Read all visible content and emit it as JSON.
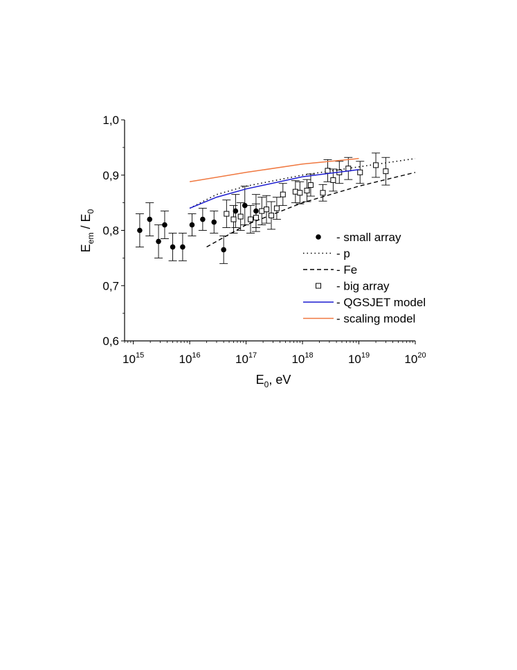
{
  "chart_data": {
    "type": "scatter",
    "xscale": "log",
    "xlim": [
      700000000000000.0,
      1e+20
    ],
    "ylim": [
      0.6,
      1.0
    ],
    "xlabel": {
      "main": "E",
      "sub": "0",
      "unit": ",  eV"
    },
    "ylabel": {
      "a": "E",
      "a_sub": "em",
      "sep": " / ",
      "b": "E",
      "b_sub": "0"
    },
    "x_tick_labels": [
      {
        "x": 1000000000000000.0,
        "base": "10",
        "exp": "15"
      },
      {
        "x": 1e+16,
        "base": "10",
        "exp": "16"
      },
      {
        "x": 1e+17,
        "base": "10",
        "exp": "17"
      },
      {
        "x": 1e+18,
        "base": "10",
        "exp": "18"
      },
      {
        "x": 1e+19,
        "base": "10",
        "exp": "19"
      },
      {
        "x": 1e+20,
        "base": "10",
        "exp": "20"
      }
    ],
    "y_ticks": [
      0.6,
      0.7,
      0.8,
      0.9,
      1.0
    ],
    "y_tick_labels": [
      "0,6",
      "0,7",
      "0,8",
      "0,9",
      "1,0"
    ],
    "grid": false,
    "legend_position": "lower-right",
    "series": [
      {
        "name": "small array",
        "kind": "points",
        "marker": "filled-circle",
        "color": "#000000",
        "points": [
          {
            "x": 1300000000000000.0,
            "y": 0.8,
            "err": 0.03
          },
          {
            "x": 1950000000000000.0,
            "y": 0.82,
            "err": 0.03
          },
          {
            "x": 2800000000000000.0,
            "y": 0.78,
            "err": 0.03
          },
          {
            "x": 3600000000000000.0,
            "y": 0.81,
            "err": 0.025
          },
          {
            "x": 5000000000000000.0,
            "y": 0.77,
            "err": 0.025
          },
          {
            "x": 7500000000000000.0,
            "y": 0.77,
            "err": 0.025
          },
          {
            "x": 1.1e+16,
            "y": 0.81,
            "err": 0.02
          },
          {
            "x": 1.7e+16,
            "y": 0.82,
            "err": 0.02
          },
          {
            "x": 2.7e+16,
            "y": 0.815,
            "err": 0.02
          },
          {
            "x": 4e+16,
            "y": 0.765,
            "err": 0.025
          },
          {
            "x": 6.5e+16,
            "y": 0.835,
            "err": 0.03
          },
          {
            "x": 9.5e+16,
            "y": 0.845,
            "err": 0.035
          },
          {
            "x": 1.5e+17,
            "y": 0.835,
            "err": 0.03
          }
        ]
      },
      {
        "name": "p",
        "kind": "line",
        "style": "dotted",
        "color": "#000000",
        "points": [
          {
            "x": 1e+16,
            "y": 0.84
          },
          {
            "x": 3e+16,
            "y": 0.865
          },
          {
            "x": 1e+17,
            "y": 0.88
          },
          {
            "x": 1e+18,
            "y": 0.9
          },
          {
            "x": 1e+19,
            "y": 0.915
          },
          {
            "x": 1e+20,
            "y": 0.93
          }
        ]
      },
      {
        "name": "Fe",
        "kind": "line",
        "style": "dashed",
        "color": "#000000",
        "points": [
          {
            "x": 2e+16,
            "y": 0.77
          },
          {
            "x": 1e+17,
            "y": 0.81
          },
          {
            "x": 1e+18,
            "y": 0.85
          },
          {
            "x": 1e+19,
            "y": 0.88
          },
          {
            "x": 1e+20,
            "y": 0.905
          }
        ]
      },
      {
        "name": "big array",
        "kind": "points",
        "marker": "open-square",
        "color": "#000000",
        "points": [
          {
            "x": 4.5e+16,
            "y": 0.83,
            "err": 0.025
          },
          {
            "x": 6e+16,
            "y": 0.82,
            "err": 0.025
          },
          {
            "x": 8e+16,
            "y": 0.825,
            "err": 0.025
          },
          {
            "x": 1.2e+17,
            "y": 0.82,
            "err": 0.025
          },
          {
            "x": 1.5e+17,
            "y": 0.823,
            "err": 0.025
          },
          {
            "x": 1.9e+17,
            "y": 0.835,
            "err": 0.025
          },
          {
            "x": 2.3e+17,
            "y": 0.838,
            "err": 0.025
          },
          {
            "x": 2.8e+17,
            "y": 0.827,
            "err": 0.025
          },
          {
            "x": 3.5e+17,
            "y": 0.84,
            "err": 0.02
          },
          {
            "x": 4.5e+17,
            "y": 0.865,
            "err": 0.02
          },
          {
            "x": 7.5e+17,
            "y": 0.87,
            "err": 0.02
          },
          {
            "x": 9e+17,
            "y": 0.868,
            "err": 0.02
          },
          {
            "x": 1.2e+18,
            "y": 0.872,
            "err": 0.02
          },
          {
            "x": 1.4e+18,
            "y": 0.882,
            "err": 0.02
          },
          {
            "x": 2.3e+18,
            "y": 0.868,
            "err": 0.015
          },
          {
            "x": 2.8e+18,
            "y": 0.908,
            "err": 0.02
          },
          {
            "x": 3.5e+18,
            "y": 0.891,
            "err": 0.02
          },
          {
            "x": 4.5e+18,
            "y": 0.905,
            "err": 0.02
          },
          {
            "x": 6.5e+18,
            "y": 0.912,
            "err": 0.02
          },
          {
            "x": 1.05e+19,
            "y": 0.905,
            "err": 0.02
          },
          {
            "x": 2e+19,
            "y": 0.918,
            "err": 0.022
          },
          {
            "x": 3e+19,
            "y": 0.907,
            "err": 0.025
          }
        ]
      },
      {
        "name": "QGSJET model",
        "kind": "line",
        "style": "solid",
        "color": "#1a1ad0",
        "points": [
          {
            "x": 1e+16,
            "y": 0.84
          },
          {
            "x": 3e+16,
            "y": 0.86
          },
          {
            "x": 1e+17,
            "y": 0.875
          },
          {
            "x": 1e+18,
            "y": 0.897
          },
          {
            "x": 1e+19,
            "y": 0.91
          }
        ]
      },
      {
        "name": "scaling model",
        "kind": "line",
        "style": "solid",
        "color": "#f07840",
        "points": [
          {
            "x": 1e+16,
            "y": 0.888
          },
          {
            "x": 1e+17,
            "y": 0.905
          },
          {
            "x": 1e+18,
            "y": 0.92
          },
          {
            "x": 1e+19,
            "y": 0.93
          }
        ]
      }
    ],
    "legend": [
      {
        "symbol": "filled-circle",
        "text": "- small array"
      },
      {
        "symbol": "dotted-line",
        "text": "- p"
      },
      {
        "symbol": "dashed-line",
        "text": "- Fe"
      },
      {
        "symbol": "open-square",
        "text": "- big array"
      },
      {
        "symbol": "blue-line",
        "text": "- QGSJET model",
        "color": "#1a1ad0"
      },
      {
        "symbol": "orange-line",
        "text": "- scaling model",
        "color": "#f07840"
      }
    ]
  }
}
